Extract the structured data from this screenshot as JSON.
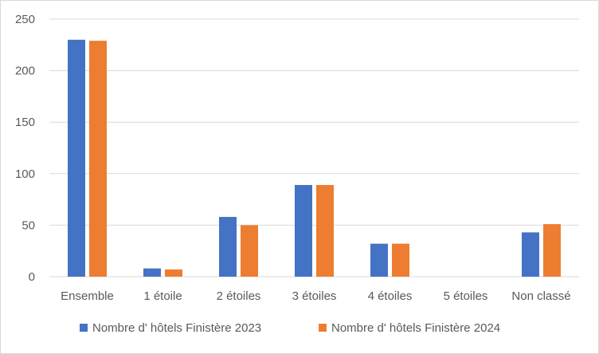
{
  "chart_data": {
    "type": "bar",
    "categories": [
      "Ensemble",
      "1 étoile",
      "2 étoiles",
      "3 étoiles",
      "4 étoiles",
      "5 étoiles",
      "Non classé"
    ],
    "series": [
      {
        "name": "Nombre d' hôtels Finistère 2023",
        "color": "#4472C4",
        "values": [
          230,
          8,
          58,
          89,
          32,
          0,
          43
        ]
      },
      {
        "name": "Nombre d' hôtels Finistère 2024",
        "color": "#ED7D31",
        "values": [
          229,
          7,
          50,
          89,
          32,
          0,
          51
        ]
      }
    ],
    "ylim": [
      0,
      250
    ],
    "yticks": [
      0,
      50,
      100,
      150,
      200,
      250
    ],
    "grid": true,
    "legend": "bottom"
  }
}
